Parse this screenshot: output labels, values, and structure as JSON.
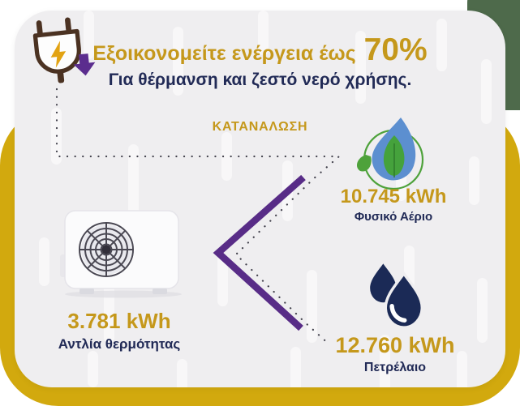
{
  "header": {
    "title": "Εξοικονομείτε ενέργεια έως",
    "title_highlight": "70%",
    "subtitle": "Για θέρμανση και ζεστό νερό χρήσης."
  },
  "consumption_label": "ΚΑΤΑΝΑΛΩΣΗ",
  "comparison": {
    "heat_pump": {
      "value": "3.781 kWh",
      "label": "Αντλία θερμότητας",
      "icon": "heat-pump-unit-icon"
    },
    "natural_gas": {
      "value": "10.745 kWh",
      "label": "Φυσικό Αέριο",
      "icon": "gas-flame-leaf-icon"
    },
    "oil": {
      "value": "12.760 kWh",
      "label": "Πετρέλαιο",
      "icon": "oil-drops-icon"
    }
  },
  "icons": {
    "plug": "power-plug-lightning-icon",
    "arrow": "down-arrow-icon",
    "flow": "dotted-flow-line",
    "chevron": "comparison-chevron"
  },
  "colors": {
    "gold_text": "#C5981B",
    "gold_frame": "#D2A90E",
    "navy": "#212A56",
    "purple": "#582C87",
    "green_corner": "#4E6A4B",
    "card_bg": "#EFEEF0",
    "flame_blue": "#5C8FD0",
    "leaf_green": "#45A23C",
    "drop_navy": "#1B2A56"
  }
}
